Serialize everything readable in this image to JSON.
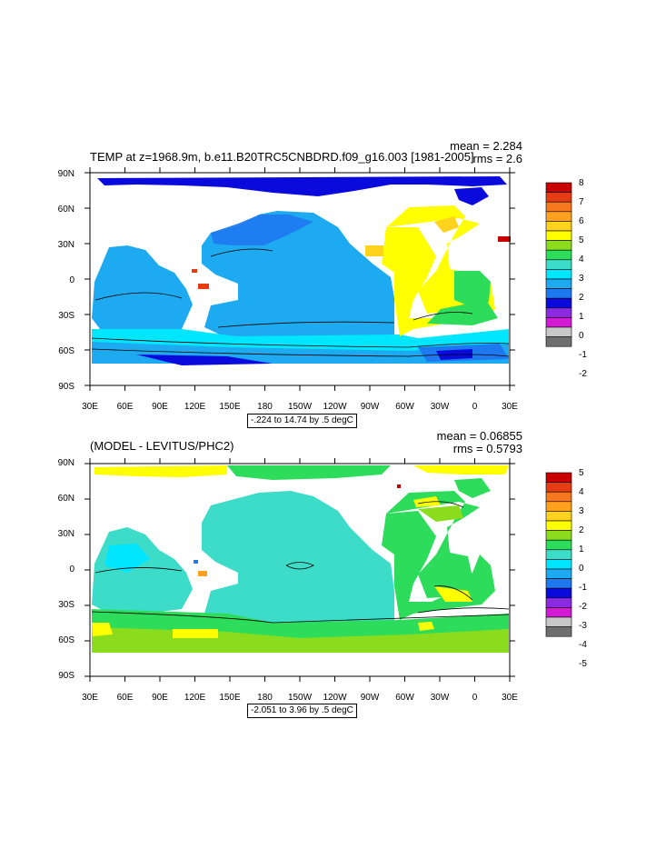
{
  "colors": {
    "land": "#ffffff",
    "frame": "#000000",
    "palette": [
      "#6e6e6e",
      "#c8c8c8",
      "#d21bd2",
      "#8a2be2",
      "#0a0adc",
      "#1e78f0",
      "#1eaaf0",
      "#00e6ff",
      "#3cdcc8",
      "#2ddc5a",
      "#8cdc1e",
      "#ffff00",
      "#ffd21e",
      "#ffa01e",
      "#f5781e",
      "#e63c14",
      "#c80000"
    ]
  },
  "top_panel": {
    "title": "TEMP at z=1968.9m, b.e11.B20TRC5CNBDRD.f09_g16.003 [1981-2005]",
    "mean_label": "mean = 2.284",
    "rms_label": "rms = 2.6",
    "range_label": "-.224 to 14.74 by .5 degC",
    "colorbar_labels": [
      "8",
      "7",
      "6",
      "5",
      "4",
      "3",
      "2",
      "1",
      "0",
      "-1",
      "-2"
    ]
  },
  "bottom_panel": {
    "title": "(MODEL - LEVITUS/PHC2)",
    "mean_label": "mean = 0.06855",
    "rms_label": "rms = 0.5793",
    "range_label": "-2.051 to 3.96 by .5 degC",
    "colorbar_labels": [
      "5",
      "4",
      "3",
      "2",
      "1",
      "0",
      "-1",
      "-2",
      "-3",
      "-4",
      "-5"
    ]
  },
  "lat_labels": [
    "90N",
    "60N",
    "30N",
    "0",
    "30S",
    "60S",
    "90S"
  ],
  "lon_labels": [
    "30E",
    "60E",
    "90E",
    "120E",
    "150E",
    "180",
    "150W",
    "120W",
    "90W",
    "60W",
    "30W",
    "0",
    "30E"
  ]
}
